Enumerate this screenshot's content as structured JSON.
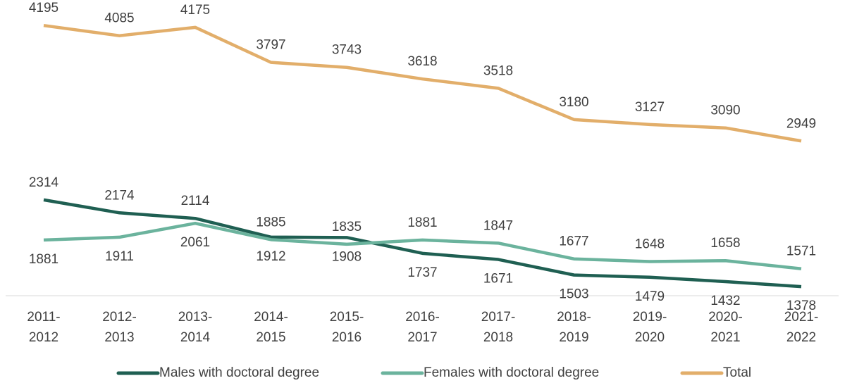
{
  "chart_data": {
    "type": "line",
    "categories": [
      "2011-2012",
      "2012-2013",
      "2013-2014",
      "2014-2015",
      "2015-2016",
      "2016-2017",
      "2017-2018",
      "2018-2019",
      "2019-2020",
      "2020-2021",
      "2021-2022"
    ],
    "series": [
      {
        "name": "Males with doctoral degree",
        "color": "#1f5f52",
        "values": [
          2314,
          2174,
          2114,
          1912,
          1908,
          1737,
          1671,
          1503,
          1479,
          1432,
          1378
        ]
      },
      {
        "name": "Females with doctoral degree",
        "color": "#6bb39d",
        "values": [
          1881,
          1911,
          2061,
          1885,
          1835,
          1881,
          1847,
          1677,
          1648,
          1658,
          1571
        ]
      },
      {
        "name": "Total",
        "color": "#e2ae6a",
        "values": [
          4195,
          4085,
          4175,
          3797,
          3743,
          3618,
          3518,
          3180,
          3127,
          3090,
          2949
        ]
      }
    ],
    "ylim": [
      1280,
      4470
    ],
    "legend": "bottom"
  }
}
